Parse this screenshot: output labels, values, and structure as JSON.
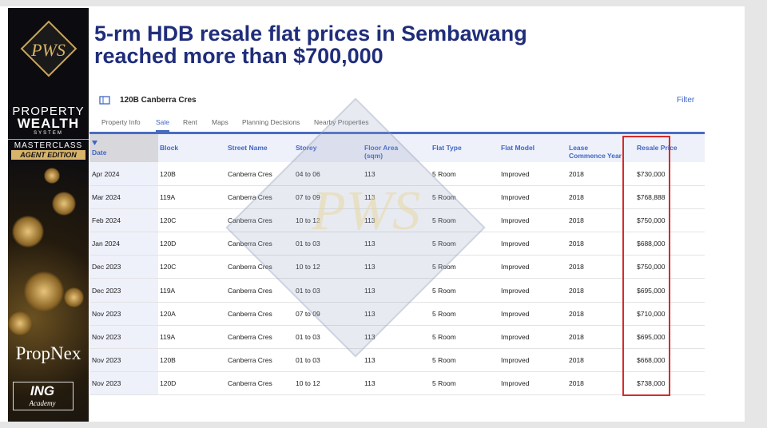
{
  "sidebar": {
    "logo": "PWS",
    "line1": "PROPERTY",
    "line2": "WEALTH",
    "line3": "SYSTEM",
    "badge1": "MASTERCLASS",
    "badge2": "AGENT EDITION",
    "brand": "PropNex",
    "academy_logo": "ING",
    "academy_sub": "Academy"
  },
  "title": [
    "5-rm HDB resale flat prices in Sembawang",
    "reached more than $700,000"
  ],
  "panel": {
    "address": "120B Canberra Cres",
    "filter": "Filter",
    "tabs": [
      "Property Info",
      "Sale",
      "Rent",
      "Maps",
      "Planning Decisions",
      "Nearby Properties"
    ],
    "active_tab": 1
  },
  "table": {
    "headers": [
      "Date",
      "Block",
      "Street Name",
      "Storey",
      "Floor Area (sqm)",
      "Flat Type",
      "Flat Model",
      "Lease Commence Year",
      "Resale Price"
    ],
    "rows": [
      [
        "Apr 2024",
        "120B",
        "Canberra Cres",
        "04 to 06",
        "113",
        "5 Room",
        "Improved",
        "2018",
        "$730,000"
      ],
      [
        "Mar 2024",
        "119A",
        "Canberra Cres",
        "07 to 09",
        "113",
        "5 Room",
        "Improved",
        "2018",
        "$768,888"
      ],
      [
        "Feb 2024",
        "120C",
        "Canberra Cres",
        "10 to 12",
        "113",
        "5 Room",
        "Improved",
        "2018",
        "$750,000"
      ],
      [
        "Jan 2024",
        "120D",
        "Canberra Cres",
        "01 to 03",
        "113",
        "5 Room",
        "Improved",
        "2018",
        "$688,000"
      ],
      [
        "Dec 2023",
        "120C",
        "Canberra Cres",
        "10 to 12",
        "113",
        "5 Room",
        "Improved",
        "2018",
        "$750,000"
      ],
      [
        "Dec 2023",
        "119A",
        "Canberra Cres",
        "01 to 03",
        "113",
        "5 Room",
        "Improved",
        "2018",
        "$695,000"
      ],
      [
        "Nov 2023",
        "120A",
        "Canberra Cres",
        "07 to 09",
        "113",
        "5 Room",
        "Improved",
        "2018",
        "$710,000"
      ],
      [
        "Nov 2023",
        "119A",
        "Canberra Cres",
        "01 to 03",
        "113",
        "5 Room",
        "Improved",
        "2018",
        "$695,000"
      ],
      [
        "Nov 2023",
        "120B",
        "Canberra Cres",
        "01 to 03",
        "113",
        "5 Room",
        "Improved",
        "2018",
        "$668,000"
      ],
      [
        "Nov 2023",
        "120D",
        "Canberra Cres",
        "10 to 12",
        "113",
        "5 Room",
        "Improved",
        "2018",
        "$738,000"
      ]
    ]
  }
}
